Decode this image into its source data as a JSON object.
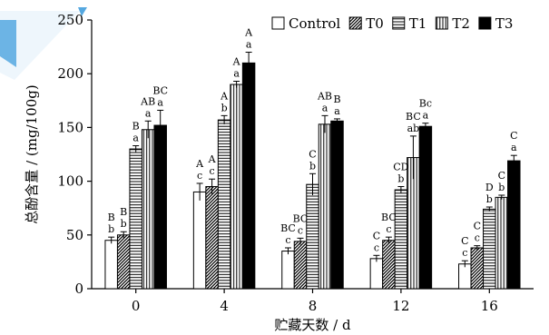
{
  "chart_data": {
    "type": "bar",
    "title": "",
    "xlabel": "贮藏天数 / d",
    "ylabel": "总酚含量 / (mg/100g)",
    "categories": [
      "0",
      "4",
      "8",
      "12",
      "16"
    ],
    "ylim": [
      0,
      250
    ],
    "yticks": [
      0,
      50,
      100,
      150,
      200,
      250
    ],
    "legend_position": "top-right",
    "grid": false,
    "series": [
      {
        "name": "Control",
        "pattern": "white",
        "values": [
          45,
          90,
          35,
          28,
          23
        ],
        "errors": [
          3,
          8,
          3,
          3,
          3
        ],
        "upper_labels": [
          "B",
          "A",
          "BC",
          "C",
          "C"
        ],
        "lower_labels": [
          "b",
          "c",
          "c",
          "c",
          "c"
        ]
      },
      {
        "name": "T0",
        "pattern": "diagonal",
        "values": [
          50,
          95,
          44,
          45,
          38
        ],
        "errors": [
          3,
          7,
          3,
          3,
          2
        ],
        "upper_labels": [
          "B",
          "A",
          "BC",
          "BC",
          "C"
        ],
        "lower_labels": [
          "b",
          "c",
          "c",
          "c",
          "c"
        ]
      },
      {
        "name": "T1",
        "pattern": "horizontal",
        "values": [
          130,
          157,
          97,
          92,
          74
        ],
        "errors": [
          3,
          4,
          10,
          3,
          2
        ],
        "upper_labels": [
          "B",
          "A",
          "C",
          "CD",
          "D"
        ],
        "lower_labels": [
          "a",
          "b",
          "b",
          "b",
          "b"
        ]
      },
      {
        "name": "T2",
        "pattern": "vertical",
        "values": [
          148,
          190,
          153,
          122,
          85
        ],
        "errors": [
          8,
          3,
          8,
          20,
          2
        ],
        "upper_labels": [
          "AB",
          "A",
          "AB",
          "BC",
          "C"
        ],
        "lower_labels": [
          "a",
          "a",
          "a",
          "ab",
          "b"
        ]
      },
      {
        "name": "T3",
        "pattern": "black",
        "values": [
          152,
          210,
          156,
          151,
          119
        ],
        "errors": [
          14,
          10,
          2,
          3,
          5
        ],
        "upper_labels": [
          "BC",
          "A",
          "B",
          "Bc",
          "C"
        ],
        "lower_labels": [
          "a",
          "a",
          "a",
          "a",
          "a"
        ]
      }
    ]
  },
  "colors": {
    "axis": "#000000",
    "bar_stroke": "#000000",
    "black_bar": "#000000",
    "decoration": "#55a8e0"
  }
}
